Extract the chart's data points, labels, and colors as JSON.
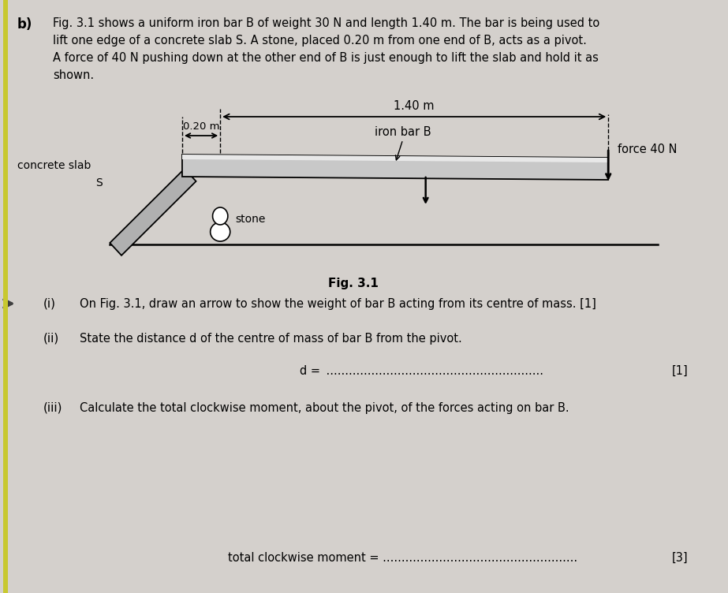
{
  "bg_color": "#d4d0cc",
  "text_color": "#000000",
  "bar_color": "#c0c0c0",
  "bar_edge": "#000000",
  "slab_color": "#b8b8b8",
  "stone_color": "#ffffff",
  "ground_color": "#000000",
  "fig_width": 9.23,
  "fig_height": 7.52,
  "intro_lines": [
    "Fig. 3.1 shows a uniform iron bar B of weight 30 N and length 1.40 m. The bar is being used to",
    "lift one edge of a concrete slab S. A stone, placed 0.20 m from one end of B, acts as a pivot.",
    "A force of 40 N pushing down at the other end of B is just enough to lift the slab and hold it as",
    "shown."
  ],
  "q1_num": "(i)",
  "q1_text": "On Fig. 3.1, draw an arrow to show the weight of bar B acting from its centre of mass. [1]",
  "q2_num": "(ii)",
  "q2_text": "State the distance d of the centre of mass of bar B from the pivot.",
  "q2_line": "d = ",
  "q2_mark": "[1]",
  "q3_num": "(iii)",
  "q3_text": "Calculate the total clockwise moment, about the pivot, of the forces acting on bar B.",
  "q3_line": "total clockwise moment = ",
  "q3_mark": "[3]",
  "fig_label": "Fig. 3.1",
  "label_iron_bar": "iron bar B",
  "label_concrete": "concrete slab",
  "label_S": "S",
  "label_stone": "stone",
  "label_force": "force 40 N",
  "label_140": "1.40 m",
  "label_020": "0.20 m"
}
